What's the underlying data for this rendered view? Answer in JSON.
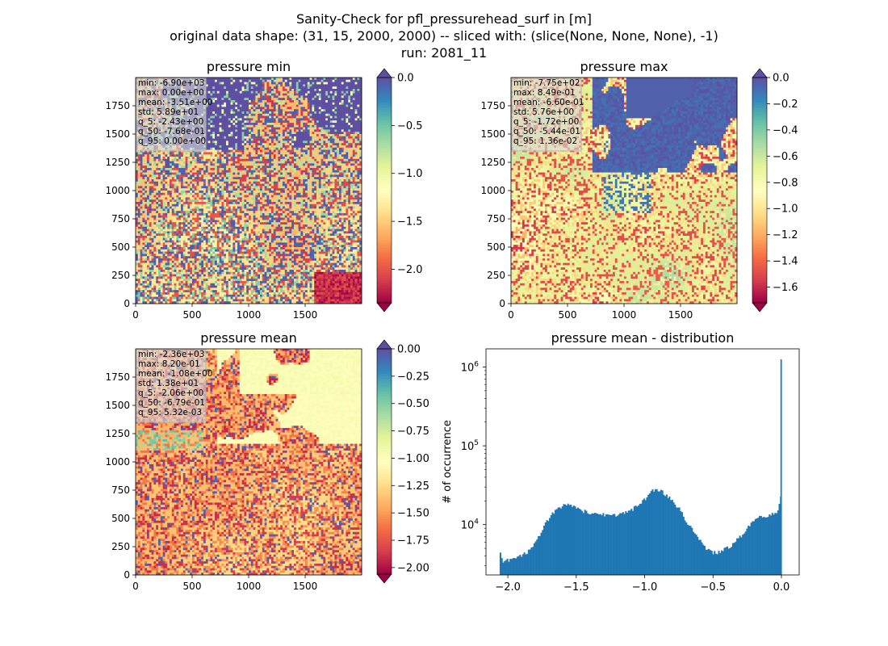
{
  "figure": {
    "title_lines": [
      "Sanity-Check for pfl_pressurehead_surf in [m]",
      "original data shape: (31, 15, 2000, 2000) -- sliced with: (slice(None, None, None), -1)",
      "run: 2081_11"
    ]
  },
  "chart_data": [
    {
      "type": "heatmap",
      "title": "pressure min",
      "colormap": "Spectral",
      "x_ticks": [
        "0",
        "500",
        "1000",
        "1500"
      ],
      "y_ticks": [
        "0",
        "250",
        "500",
        "750",
        "1000",
        "1250",
        "1500",
        "1750"
      ],
      "xlim": [
        0,
        2000
      ],
      "ylim": [
        0,
        2000
      ],
      "colorbar": {
        "range": [
          -2.35,
          0.0
        ],
        "ticks": [
          "0.0",
          "−0.5",
          "−1.0",
          "−1.5",
          "−2.0"
        ],
        "tick_values": [
          0.0,
          -0.5,
          -1.0,
          -1.5,
          -2.0
        ],
        "extend": "both"
      },
      "stats": [
        "min: -6.90e+03",
        "max: 0.00e+00",
        "mean: -3.51e+00",
        "std: 5.89e+01",
        "q_5: -2.43e+00",
        "q_50: -7.68e-01",
        "q_95: 0.00e+00"
      ]
    },
    {
      "type": "heatmap",
      "title": "pressure max",
      "colormap": "Spectral",
      "x_ticks": [
        "0",
        "500",
        "1000",
        "1500"
      ],
      "y_ticks": [
        "0",
        "250",
        "500",
        "750",
        "1000",
        "1250",
        "1500",
        "1750"
      ],
      "xlim": [
        0,
        2000
      ],
      "ylim": [
        0,
        2000
      ],
      "colorbar": {
        "range": [
          -1.72,
          0.0
        ],
        "ticks": [
          "0.0",
          "−0.2",
          "−0.4",
          "−0.6",
          "−0.8",
          "−1.0",
          "−1.2",
          "−1.4",
          "−1.6"
        ],
        "tick_values": [
          0.0,
          -0.2,
          -0.4,
          -0.6,
          -0.8,
          -1.0,
          -1.2,
          -1.4,
          -1.6
        ],
        "extend": "both"
      },
      "stats": [
        "min: -7.75e+02",
        "max: 8.49e-01",
        "mean: -6.60e-01",
        "std: 5.76e+00",
        "q_5: -1.72e+00",
        "q_50: -5.44e-01",
        "q_95: 1.36e-02"
      ]
    },
    {
      "type": "heatmap",
      "title": "pressure mean",
      "colormap": "Spectral",
      "x_ticks": [
        "0",
        "500",
        "1000",
        "1500"
      ],
      "y_ticks": [
        "0",
        "250",
        "500",
        "750",
        "1000",
        "1250",
        "1500",
        "1750"
      ],
      "xlim": [
        0,
        2000
      ],
      "ylim": [
        0,
        2000
      ],
      "colorbar": {
        "range": [
          -2.06,
          0.0
        ],
        "ticks": [
          "0.00",
          "−0.25",
          "−0.50",
          "−0.75",
          "−1.00",
          "−1.25",
          "−1.50",
          "−1.75",
          "−2.00"
        ],
        "tick_values": [
          0.0,
          -0.25,
          -0.5,
          -0.75,
          -1.0,
          -1.25,
          -1.5,
          -1.75,
          -2.0
        ],
        "extend": "both"
      },
      "stats": [
        "min: -2.36e+03",
        "max: 8.20e-01",
        "mean: -1.08e+00",
        "std: 1.38e+01",
        "q_5: -2.06e+00",
        "q_50: -6.79e-01",
        "q_95: 5.32e-03"
      ]
    },
    {
      "type": "bar",
      "title": "pressure mean - distribution",
      "ylabel": "# of occurrence",
      "xlabel": "",
      "y_scale": "log",
      "color": "#1f77b4",
      "xlim": [
        -2.16,
        0.13
      ],
      "ylim": [
        2300,
        1700000
      ],
      "x_ticks": [
        {
          "value": -2.0,
          "label": "−2.0"
        },
        {
          "value": -1.5,
          "label": "−1.5"
        },
        {
          "value": -1.0,
          "label": "−1.0"
        },
        {
          "value": -0.5,
          "label": "−0.5"
        },
        {
          "value": 0.0,
          "label": "0.0"
        }
      ],
      "y_ticks": [
        {
          "value": 10000,
          "base": "10",
          "exp": "4"
        },
        {
          "value": 100000,
          "base": "10",
          "exp": "5"
        },
        {
          "value": 1000000,
          "base": "10",
          "exp": "6"
        }
      ],
      "bin_range": [
        -2.06,
        0.0
      ],
      "bin_width": 0.0103,
      "profile": [
        [
          -2.06,
          3200
        ],
        [
          -2.055,
          4200
        ],
        [
          -2.04,
          3400
        ],
        [
          -2.0,
          3500
        ],
        [
          -1.95,
          3700
        ],
        [
          -1.9,
          4000
        ],
        [
          -1.85,
          4600
        ],
        [
          -1.8,
          6000
        ],
        [
          -1.75,
          8500
        ],
        [
          -1.7,
          12000
        ],
        [
          -1.65,
          15500
        ],
        [
          -1.6,
          17500
        ],
        [
          -1.55,
          17500
        ],
        [
          -1.5,
          16000
        ],
        [
          -1.45,
          14800
        ],
        [
          -1.4,
          14000
        ],
        [
          -1.35,
          13500
        ],
        [
          -1.3,
          13500
        ],
        [
          -1.25,
          13500
        ],
        [
          -1.2,
          13300
        ],
        [
          -1.15,
          13800
        ],
        [
          -1.1,
          15000
        ],
        [
          -1.05,
          17500
        ],
        [
          -1.0,
          21000
        ],
        [
          -0.95,
          26000
        ],
        [
          -0.92,
          28500
        ],
        [
          -0.88,
          27000
        ],
        [
          -0.85,
          24000
        ],
        [
          -0.8,
          20500
        ],
        [
          -0.75,
          16000
        ],
        [
          -0.7,
          11500
        ],
        [
          -0.65,
          8500
        ],
        [
          -0.6,
          6500
        ],
        [
          -0.55,
          5000
        ],
        [
          -0.52,
          4500
        ],
        [
          -0.5,
          4400
        ],
        [
          -0.45,
          4500
        ],
        [
          -0.4,
          5000
        ],
        [
          -0.35,
          5800
        ],
        [
          -0.3,
          7000
        ],
        [
          -0.25,
          9000
        ],
        [
          -0.2,
          11000
        ],
        [
          -0.15,
          12500
        ],
        [
          -0.1,
          13000
        ],
        [
          -0.05,
          13500
        ],
        [
          -0.03,
          15000
        ],
        [
          -0.01,
          20000
        ],
        [
          0.0,
          25000
        ]
      ],
      "peak": {
        "x": 0.0,
        "value": 1250000
      }
    }
  ]
}
